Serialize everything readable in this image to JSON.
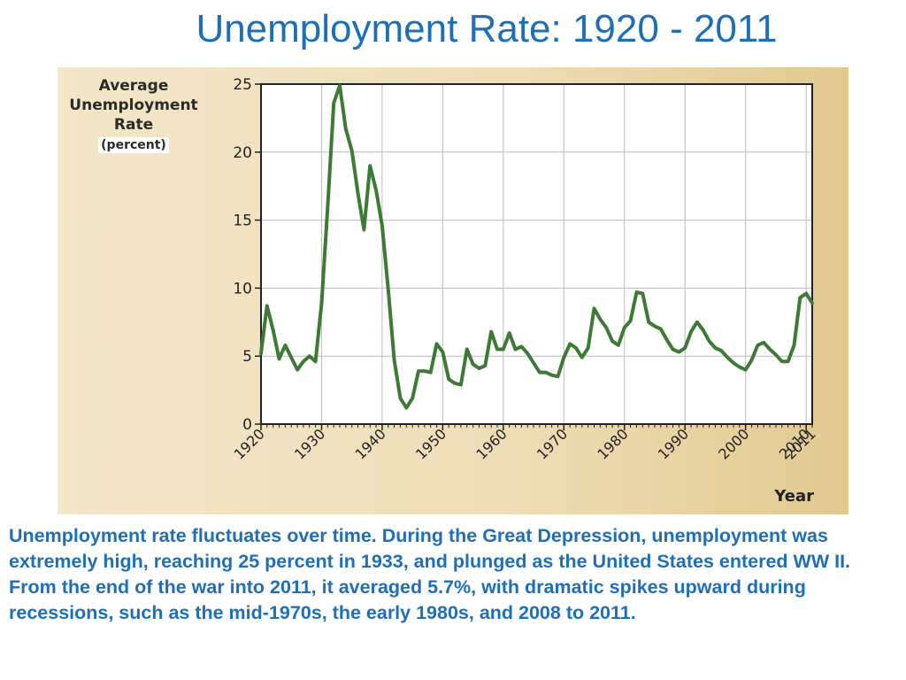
{
  "title": "Unemployment Rate: 1920 - 2011",
  "caption": "Unemployment rate fluctuates over time. During the Great Depression, unemployment was extremely high, reaching 25 percent in 1933, and plunged as the United States entered  WW II. From the end of the war into 2011, it averaged 5.7%, with dramatic spikes upward during recessions, such as the mid-1970s, the early 1980s, and 2008 to 2011.",
  "colors": {
    "title": "#1f6fb5",
    "line": "#3d7a35",
    "grid": "#bdbdbd"
  },
  "chart_data": {
    "type": "line",
    "title": "",
    "ylabel": "Average Unemployment Rate",
    "ylabel_lines": [
      "Average",
      "Unemployment",
      "Rate"
    ],
    "yunit": "(percent)",
    "xlabel": "Year",
    "xlim": [
      1920,
      2011
    ],
    "ylim": [
      0,
      25
    ],
    "xticks": [
      1920,
      1930,
      1940,
      1950,
      1960,
      1970,
      1980,
      1990,
      2000,
      2010,
      2011
    ],
    "yticks": [
      0,
      5,
      10,
      15,
      20,
      25
    ],
    "grid": true,
    "series": [
      {
        "x": [
          1920,
          1921,
          1922,
          1923,
          1924,
          1925,
          1926,
          1927,
          1928,
          1929,
          1930,
          1931,
          1932,
          1933,
          1934,
          1935,
          1936,
          1937,
          1938,
          1939,
          1940,
          1941,
          1942,
          1943,
          1944,
          1945,
          1946,
          1947,
          1948,
          1949,
          1950,
          1951,
          1952,
          1953,
          1954,
          1955,
          1956,
          1957,
          1958,
          1959,
          1960,
          1961,
          1962,
          1963,
          1964,
          1965,
          1966,
          1967,
          1968,
          1969,
          1970,
          1971,
          1972,
          1973,
          1974,
          1975,
          1976,
          1977,
          1978,
          1979,
          1980,
          1981,
          1982,
          1983,
          1984,
          1985,
          1986,
          1987,
          1988,
          1989,
          1990,
          1991,
          1992,
          1993,
          1994,
          1995,
          1996,
          1997,
          1998,
          1999,
          2000,
          2001,
          2002,
          2003,
          2004,
          2005,
          2006,
          2007,
          2008,
          2009,
          2010,
          2011
        ],
        "y": [
          5.2,
          8.7,
          6.9,
          4.8,
          5.8,
          4.9,
          4.0,
          4.6,
          5.0,
          4.6,
          8.9,
          15.9,
          23.6,
          24.9,
          21.7,
          20.1,
          17.0,
          14.3,
          19.0,
          17.2,
          14.6,
          9.9,
          4.7,
          1.9,
          1.2,
          1.9,
          3.9,
          3.9,
          3.8,
          5.9,
          5.3,
          3.3,
          3.0,
          2.9,
          5.5,
          4.4,
          4.1,
          4.3,
          6.8,
          5.5,
          5.5,
          6.7,
          5.5,
          5.7,
          5.2,
          4.5,
          3.8,
          3.8,
          3.6,
          3.5,
          4.9,
          5.9,
          5.6,
          4.9,
          5.6,
          8.5,
          7.7,
          7.1,
          6.1,
          5.8,
          7.1,
          7.6,
          9.7,
          9.6,
          7.5,
          7.2,
          7.0,
          6.2,
          5.5,
          5.3,
          5.6,
          6.8,
          7.5,
          6.9,
          6.1,
          5.6,
          5.4,
          4.9,
          4.5,
          4.2,
          4.0,
          4.7,
          5.8,
          6.0,
          5.5,
          5.1,
          4.6,
          4.6,
          5.8,
          9.3,
          9.6,
          8.9
        ]
      }
    ]
  }
}
